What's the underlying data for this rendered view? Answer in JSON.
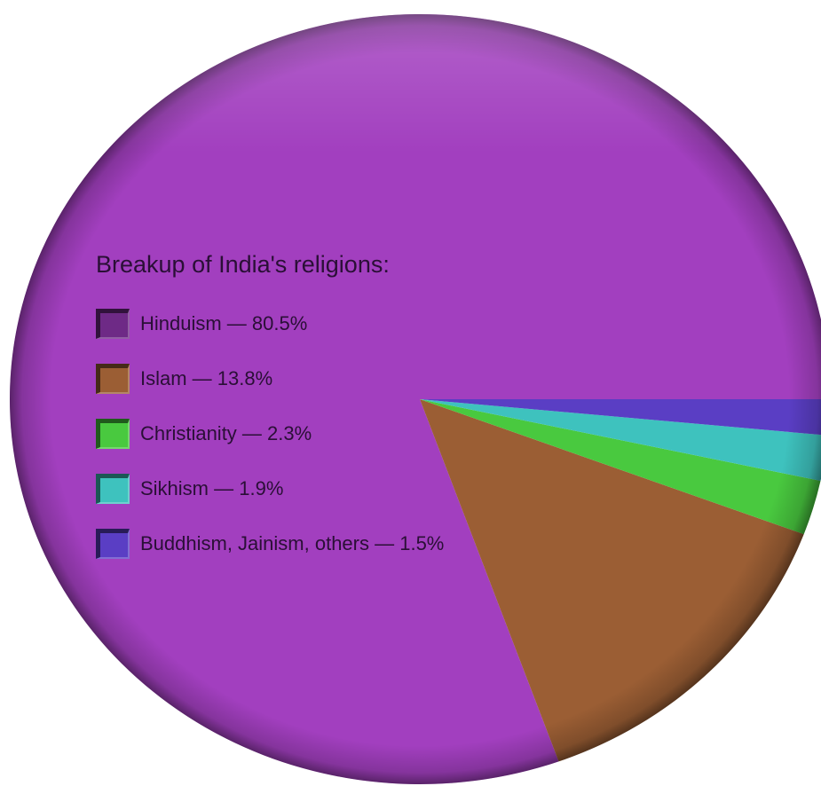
{
  "chart_data": {
    "type": "pie",
    "title": "Breakup of India's religions:",
    "start_angle_deg": 0,
    "direction": "counterclockwise",
    "slices": [
      {
        "label": "Hinduism — 80.5%",
        "name": "Hinduism",
        "value": 80.5,
        "color": "#a23fbf"
      },
      {
        "label": "Islam — 13.8%",
        "name": "Islam",
        "value": 13.8,
        "color": "#9b5e34"
      },
      {
        "label": "Christianity — 2.3%",
        "name": "Christianity",
        "value": 2.3,
        "color": "#49c93f"
      },
      {
        "label": "Sikhism — 1.9%",
        "name": "Sikhism",
        "value": 1.9,
        "color": "#3ec2be"
      },
      {
        "label": "Buddhism, Jainism, others — 1.5%",
        "name": "Buddhism, Jainism, others",
        "value": 1.5,
        "color": "#5a3ec4"
      }
    ]
  }
}
